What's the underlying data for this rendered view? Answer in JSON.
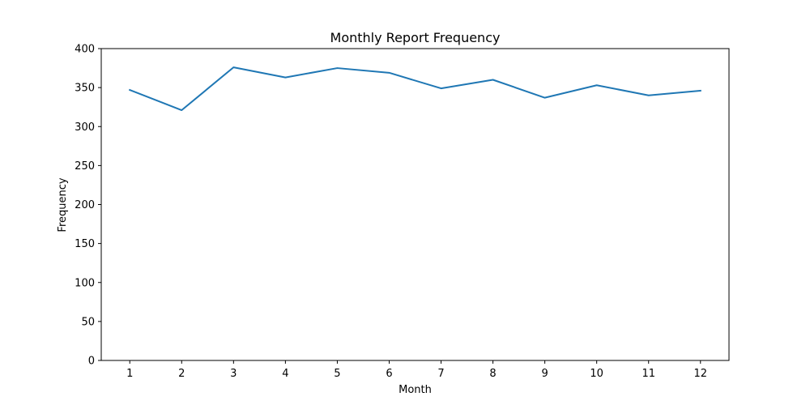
{
  "chart_data": {
    "type": "line",
    "title": "Monthly Report Frequency",
    "xlabel": "Month",
    "ylabel": "Frequency",
    "x": [
      1,
      2,
      3,
      4,
      5,
      6,
      7,
      8,
      9,
      10,
      11,
      12
    ],
    "x_ticks": [
      "1",
      "2",
      "3",
      "4",
      "5",
      "6",
      "7",
      "8",
      "9",
      "10",
      "11",
      "12"
    ],
    "y_ticks": [
      "0",
      "50",
      "100",
      "150",
      "200",
      "250",
      "300",
      "350",
      "400"
    ],
    "xlim": [
      0.45,
      12.55
    ],
    "ylim": [
      0,
      400
    ],
    "series": [
      {
        "values": [
          347,
          321,
          376,
          363,
          375,
          369,
          349,
          360,
          337,
          353,
          340,
          346
        ],
        "color": "#1f77b4"
      }
    ],
    "grid": false,
    "legend": "none"
  }
}
